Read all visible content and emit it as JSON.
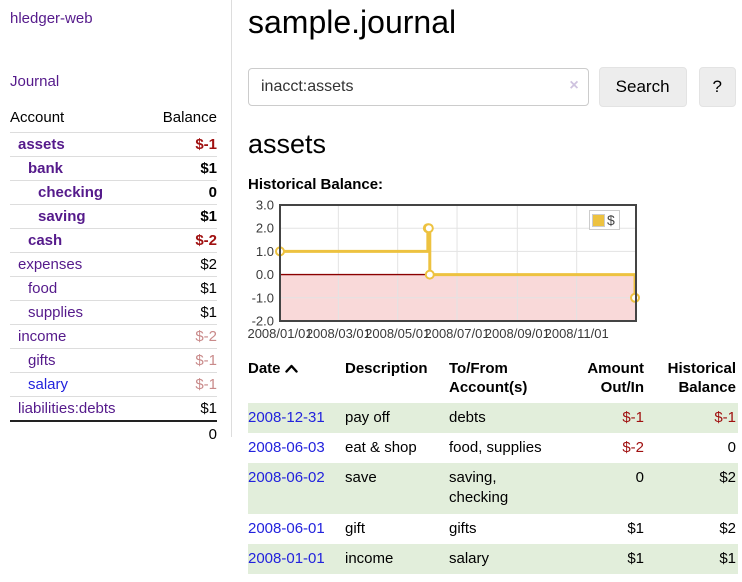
{
  "app": {
    "title": "hledger-web"
  },
  "colors": {
    "purple": "#551a8b",
    "blue": "#2222dd",
    "negative": "#a01010",
    "negative_faded": "#c98a8a",
    "stripe_green": "#e2eedb"
  },
  "sidebar": {
    "journal_link": "Journal",
    "table": {
      "headers": {
        "account": "Account",
        "balance": "Balance"
      },
      "accounts": [
        {
          "name": "assets",
          "level": 1,
          "bold": true,
          "balance": "$-1",
          "balance_style": "neg"
        },
        {
          "name": "bank",
          "level": 2,
          "bold": true,
          "balance": "$1",
          "balance_style": "pos"
        },
        {
          "name": "checking",
          "level": 3,
          "bold": true,
          "balance": "0",
          "balance_style": "pos"
        },
        {
          "name": "saving",
          "level": 3,
          "bold": true,
          "balance": "$1",
          "balance_style": "pos"
        },
        {
          "name": "cash",
          "level": 2,
          "bold": true,
          "balance": "$-2",
          "balance_style": "neg"
        },
        {
          "name": "expenses",
          "level": 1,
          "bold": false,
          "balance": "$2",
          "balance_style": "pos"
        },
        {
          "name": "food",
          "level": 2,
          "bold": false,
          "balance": "$1",
          "balance_style": "pos"
        },
        {
          "name": "supplies",
          "level": 2,
          "bold": false,
          "balance": "$1",
          "balance_style": "pos"
        },
        {
          "name": "income",
          "level": 1,
          "bold": false,
          "balance": "$-2",
          "balance_style": "neg-faded"
        },
        {
          "name": "gifts",
          "level": 2,
          "bold": false,
          "balance": "$-1",
          "balance_style": "neg-faded"
        },
        {
          "name": "salary",
          "level": 2,
          "bold": false,
          "balance": "$-1",
          "balance_style": "neg-faded",
          "link_style": "unvisited"
        },
        {
          "name": "liabilities:debts",
          "level": 1,
          "bold": false,
          "balance": "$1",
          "balance_style": "pos"
        }
      ],
      "total": "0"
    }
  },
  "header": {
    "title": "sample.journal"
  },
  "search": {
    "value": "inacct:assets",
    "clear_icon": "×",
    "button_label": "Search",
    "help_label": "?"
  },
  "account_page": {
    "heading": "assets",
    "chart_title": "Historical Balance:"
  },
  "chart_data": {
    "type": "line",
    "step": true,
    "title": "Historical Balance",
    "series": [
      {
        "name": "$",
        "color": "#EDC240",
        "points": [
          [
            "2008-01-01",
            1
          ],
          [
            "2008-06-01",
            2
          ],
          [
            "2008-06-02",
            2
          ],
          [
            "2008-06-03",
            0
          ],
          [
            "2008-12-31",
            -1
          ]
        ]
      }
    ],
    "x_range": [
      "2008-01-01",
      "2009-01-01"
    ],
    "ylim": [
      -2,
      3
    ],
    "y_ticks": [
      "3.0",
      "2.0",
      "1.0",
      "0.0",
      "-1.0",
      "-2.0"
    ],
    "x_ticks": [
      "2008/01/01",
      "2008/03/01",
      "2008/05/01",
      "2008/07/01",
      "2008/09/01",
      "2008/11/01"
    ],
    "grid": true,
    "negative_region_fill": "#f9d9d9",
    "zero_line_color": "#8b0000",
    "plot_border_color": "#444444",
    "grid_color": "#e3e3e3",
    "tick_label_color": "#3a3a3a",
    "legend": {
      "label": "$",
      "position": "top-right"
    }
  },
  "register": {
    "columns": [
      {
        "label": "Date",
        "sort": "asc"
      },
      {
        "label": "Description"
      },
      {
        "label": "To/From Account(s)"
      },
      {
        "label": "Amount Out/In",
        "align": "right"
      },
      {
        "label": "Historical Balance",
        "align": "right"
      }
    ],
    "rows": [
      {
        "date": "2008-12-31",
        "description": "pay off",
        "accounts": "debts",
        "amount": "$-1",
        "amount_style": "neg",
        "balance": "$-1",
        "balance_style": "neg"
      },
      {
        "date": "2008-06-03",
        "description": "eat & shop",
        "accounts": "food, supplies",
        "amount": "$-2",
        "amount_style": "neg",
        "balance": "0",
        "balance_style": "pos"
      },
      {
        "date": "2008-06-02",
        "description": "save",
        "accounts": "saving, checking",
        "amount": "0",
        "amount_style": "pos",
        "balance": "$2",
        "balance_style": "pos"
      },
      {
        "date": "2008-06-01",
        "description": "gift",
        "accounts": "gifts",
        "amount": "$1",
        "amount_style": "pos",
        "balance": "$2",
        "balance_style": "pos"
      },
      {
        "date": "2008-01-01",
        "description": "income",
        "accounts": "salary",
        "amount": "$1",
        "amount_style": "pos",
        "balance": "$1",
        "balance_style": "pos"
      }
    ]
  }
}
